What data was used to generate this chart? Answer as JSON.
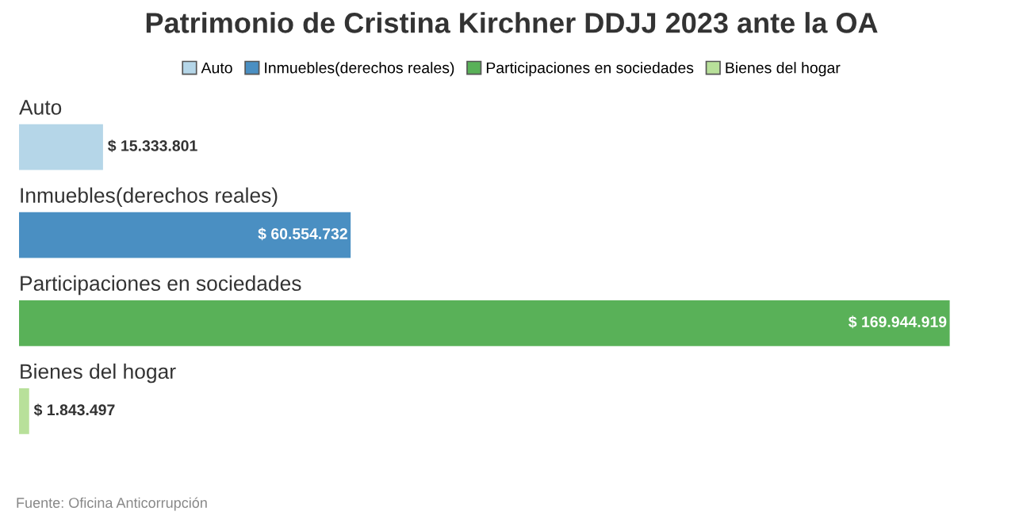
{
  "chart_data": {
    "type": "bar",
    "orientation": "horizontal",
    "title": "Patrimonio de Cristina Kirchner DDJJ 2023 ante la OA",
    "categories": [
      "Auto",
      "Inmuebles(derechos reales)",
      "Participaciones en sociedades",
      "Bienes del hogar"
    ],
    "series": [
      {
        "name": "Auto",
        "color": "#b5d6e8",
        "values": [
          15333801,
          null,
          null,
          null
        ],
        "value_labels": [
          "$ 15.333.801",
          null,
          null,
          null
        ]
      },
      {
        "name": "Inmuebles(derechos reales)",
        "color": "#4a8fc2",
        "values": [
          null,
          60554732,
          null,
          null
        ],
        "value_labels": [
          null,
          "$ 60.554.732",
          null,
          null
        ]
      },
      {
        "name": "Participaciones en sociedades",
        "color": "#59b158",
        "values": [
          null,
          null,
          169944919,
          null
        ],
        "value_labels": [
          null,
          null,
          "$ 169.944.919",
          null
        ]
      },
      {
        "name": "Bienes del hogar",
        "color": "#b8e09a",
        "values": [
          null,
          null,
          null,
          1843497
        ],
        "value_labels": [
          null,
          null,
          null,
          "$ 1.843.497"
        ]
      }
    ],
    "legend": "top",
    "annotations": [
      "Fuente: Oficina Anticorrupción"
    ]
  }
}
